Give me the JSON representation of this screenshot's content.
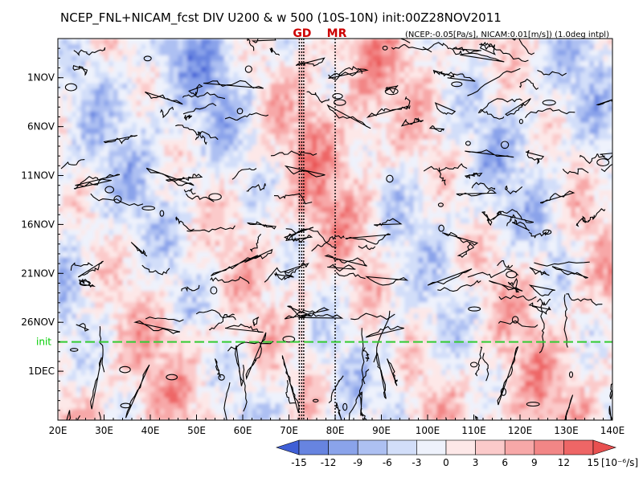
{
  "chart_data": {
    "type": "heatmap",
    "title": "NCEP_FNL+NICAM_fcst DIV U200 & w 500 (10S-10N) init:00Z28NOV2011",
    "subtitle": "(NCEP:-0.05[Pa/s], NICAM:0.01[m/s]) (1.0deg intpl)",
    "x": {
      "min": 20,
      "max": 140,
      "ticks": [
        20,
        30,
        40,
        50,
        60,
        70,
        80,
        90,
        100,
        110,
        120,
        130,
        140
      ],
      "tick_labels": [
        "20E",
        "30E",
        "40E",
        "50E",
        "60E",
        "70E",
        "80E",
        "90E",
        "100E",
        "110E",
        "120E",
        "130E",
        "140E"
      ]
    },
    "y": {
      "start": "2011-10-28",
      "end": "2011-12-06",
      "reversed": true,
      "ticks": [
        "2011-11-01",
        "2011-11-06",
        "2011-11-11",
        "2011-11-16",
        "2011-11-21",
        "2011-11-26",
        "2011-12-01"
      ],
      "tick_labels": [
        "1NOV",
        "6NOV",
        "11NOV",
        "16NOV",
        "21NOV",
        "26NOV",
        "1DEC"
      ]
    },
    "markers": [
      {
        "label": "GD",
        "lon": 72.5
      },
      {
        "label": "MR",
        "lon": 80
      }
    ],
    "init_line": {
      "label": "init",
      "date": "2011-11-28",
      "color": "#33cc33"
    },
    "colorbar": {
      "levels": [
        -15,
        -12,
        -9,
        -6,
        -3,
        0,
        3,
        6,
        9,
        12,
        15
      ],
      "tick_labels": [
        "-15",
        "-12",
        "-9",
        "-6",
        "-3",
        "0",
        "3",
        "6",
        "9",
        "12",
        "15"
      ],
      "unit": "[10⁻⁶/s]",
      "colors": [
        "#3f5fd6",
        "#6784e0",
        "#8aa3ea",
        "#adc0f2",
        "#d2def9",
        "#eef2fc",
        "#fde8e8",
        "#fbcaca",
        "#f7a8a8",
        "#f28686",
        "#ee6666",
        "#e85050"
      ],
      "extend": "both"
    }
  }
}
